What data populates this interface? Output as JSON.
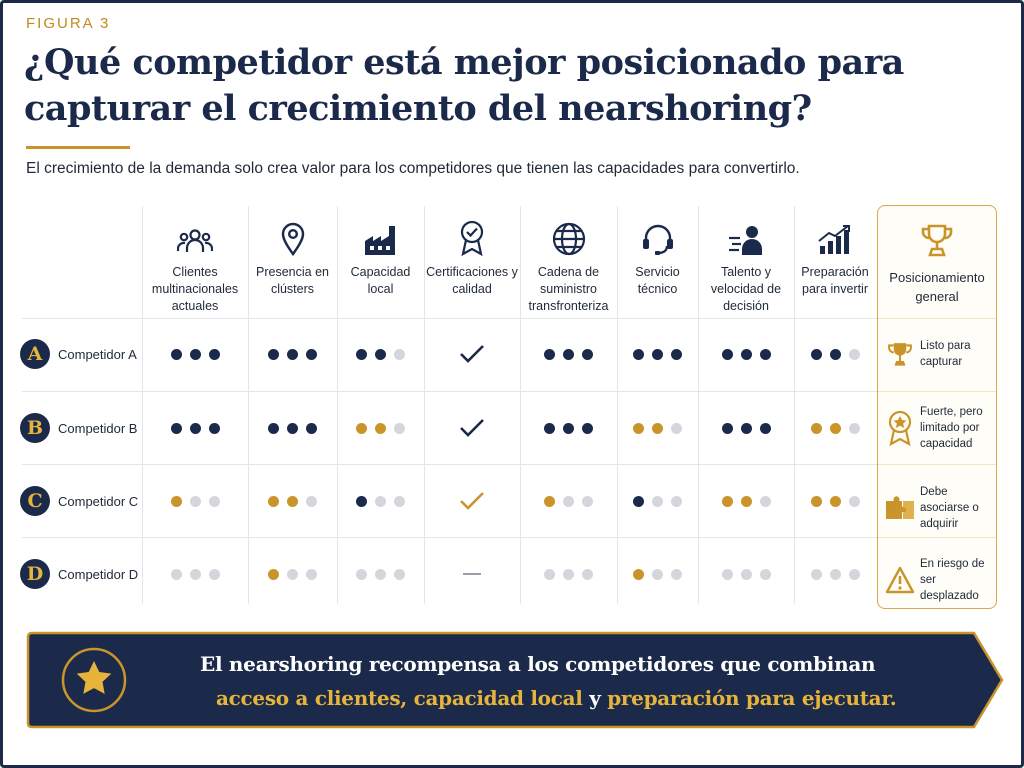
{
  "figure_label": "FIGURA 3",
  "title": "¿Qué competidor está mejor posicionado para capturar el crecimiento del nearshoring?",
  "subtitle": "El crecimiento de la demanda solo crea valor para los competidores que tienen las capacidades para convertirlo.",
  "columns": [
    {
      "label": "Clientes multinacionales actuales",
      "icon": "people-group-icon"
    },
    {
      "label": "Presencia en clústers",
      "icon": "location-pin-icon"
    },
    {
      "label": "Capacidad local",
      "icon": "factory-icon"
    },
    {
      "label": "Certificaciones y calidad",
      "icon": "award-badge-icon"
    },
    {
      "label": "Cadena de suministro transfronteriza",
      "icon": "globe-icon"
    },
    {
      "label": "Servicio técnico",
      "icon": "headset-icon"
    },
    {
      "label": "Talento y velocidad de decisión",
      "icon": "fast-person-icon"
    },
    {
      "label": "Preparación para invertir",
      "icon": "growth-chart-icon"
    }
  ],
  "position_header": "Posicionamiento general",
  "rows": [
    {
      "letter": "A",
      "name": "Competidor A",
      "ratings": [
        {
          "type": "dots",
          "filled": 3,
          "color": "navy"
        },
        {
          "type": "dots",
          "filled": 3,
          "color": "navy"
        },
        {
          "type": "dots",
          "filled": 2,
          "color": "navy"
        },
        {
          "type": "check",
          "color": "navy"
        },
        {
          "type": "dots",
          "filled": 3,
          "color": "navy"
        },
        {
          "type": "dots",
          "filled": 3,
          "color": "navy"
        },
        {
          "type": "dots",
          "filled": 3,
          "color": "navy"
        },
        {
          "type": "dots",
          "filled": 2,
          "color": "navy"
        }
      ],
      "position": {
        "text": "Listo para capturar",
        "icon": "trophy-icon"
      }
    },
    {
      "letter": "B",
      "name": "Competidor B",
      "ratings": [
        {
          "type": "dots",
          "filled": 3,
          "color": "navy"
        },
        {
          "type": "dots",
          "filled": 3,
          "color": "navy"
        },
        {
          "type": "dots",
          "filled": 2,
          "color": "gold"
        },
        {
          "type": "check",
          "color": "navy"
        },
        {
          "type": "dots",
          "filled": 3,
          "color": "navy"
        },
        {
          "type": "dots",
          "filled": 2,
          "color": "gold"
        },
        {
          "type": "dots",
          "filled": 3,
          "color": "navy"
        },
        {
          "type": "dots",
          "filled": 2,
          "color": "gold"
        }
      ],
      "position": {
        "text": "Fuerte, pero limitado por capacidad",
        "icon": "medal-icon"
      }
    },
    {
      "letter": "C",
      "name": "Competidor C",
      "ratings": [
        {
          "type": "dots",
          "filled": 1,
          "color": "gold"
        },
        {
          "type": "dots",
          "filled": 2,
          "color": "gold"
        },
        {
          "type": "dots",
          "filled": 1,
          "color": "navy"
        },
        {
          "type": "check",
          "color": "gold"
        },
        {
          "type": "dots",
          "filled": 1,
          "color": "gold"
        },
        {
          "type": "dots",
          "filled": 1,
          "color": "navy"
        },
        {
          "type": "dots",
          "filled": 2,
          "color": "gold"
        },
        {
          "type": "dots",
          "filled": 2,
          "color": "gold"
        }
      ],
      "position": {
        "text": "Debe asociarse o adquirir",
        "icon": "puzzle-icon"
      }
    },
    {
      "letter": "D",
      "name": "Competidor D",
      "ratings": [
        {
          "type": "dots",
          "filled": 0,
          "color": "navy"
        },
        {
          "type": "dots",
          "filled": 1,
          "color": "gold"
        },
        {
          "type": "dots",
          "filled": 0,
          "color": "navy"
        },
        {
          "type": "dash",
          "color": "grey"
        },
        {
          "type": "dots",
          "filled": 0,
          "color": "navy"
        },
        {
          "type": "dots",
          "filled": 1,
          "color": "gold"
        },
        {
          "type": "dots",
          "filled": 0,
          "color": "navy"
        },
        {
          "type": "dots",
          "filled": 0,
          "color": "navy"
        }
      ],
      "position": {
        "text": "En riesgo de ser desplazado",
        "icon": "warning-icon"
      }
    }
  ],
  "banner": {
    "icon": "star-icon",
    "line1": "El nearshoring recompensa a los competidores que combinan",
    "line2_part1": "acceso a clientes,",
    "line2_part2": "capacidad local",
    "line2_part3": "y",
    "line2_part4": "preparación para ejecutar."
  },
  "colors": {
    "navy": "#1b2a4a",
    "gold": "#c9952a",
    "empty": "#d3d6db"
  }
}
